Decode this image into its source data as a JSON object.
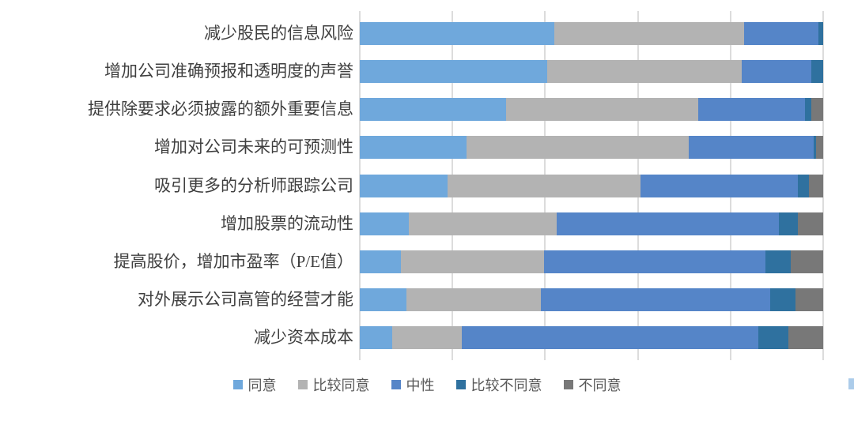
{
  "chart_data": {
    "type": "bar",
    "orientation": "horizontal",
    "stacking": "100%",
    "title": "",
    "xlabel": "",
    "ylabel": "",
    "xlim": [
      0,
      100
    ],
    "grid": true,
    "gridline_step_percent": 20,
    "legend_position": "bottom",
    "categories": [
      "减少股民的信息风险",
      "增加公司准确预报和透明度的声誉",
      "提供除要求必须披露的额外重要信息",
      "增加对公司未来的可预测性",
      "吸引更多的分析师跟踪公司",
      "增加股票的流动性",
      "提高股价，增加市盈率（P/E值）",
      "对外展示公司高管的经营才能",
      "减少资本成本"
    ],
    "series": [
      {
        "name": "同意",
        "color": "#6fa8dc",
        "values": [
          42,
          40.5,
          31.5,
          23,
          19,
          10.5,
          9,
          10,
          7
        ]
      },
      {
        "name": "比较同意",
        "color": "#b3b3b3",
        "values": [
          41,
          42,
          41.5,
          48,
          41.5,
          32,
          31,
          29,
          15
        ]
      },
      {
        "name": "中性",
        "color": "#5585c8",
        "values": [
          16,
          15,
          23,
          27,
          34,
          48,
          48,
          49.5,
          64
        ]
      },
      {
        "name": "比较不同意",
        "color": "#2f719f",
        "values": [
          1,
          2.5,
          1.5,
          0.5,
          2.5,
          4,
          5.5,
          5.5,
          6.5
        ]
      },
      {
        "name": "不同意",
        "color": "#787878",
        "values": [
          0,
          0,
          2.5,
          1.5,
          3,
          5.5,
          7,
          6,
          7.5
        ]
      }
    ]
  },
  "style": {
    "gridline_color": "#dcdcdc",
    "label_text_color": "#3f3f3f",
    "legend_text_color": "#595959",
    "background": "#ffffff"
  }
}
